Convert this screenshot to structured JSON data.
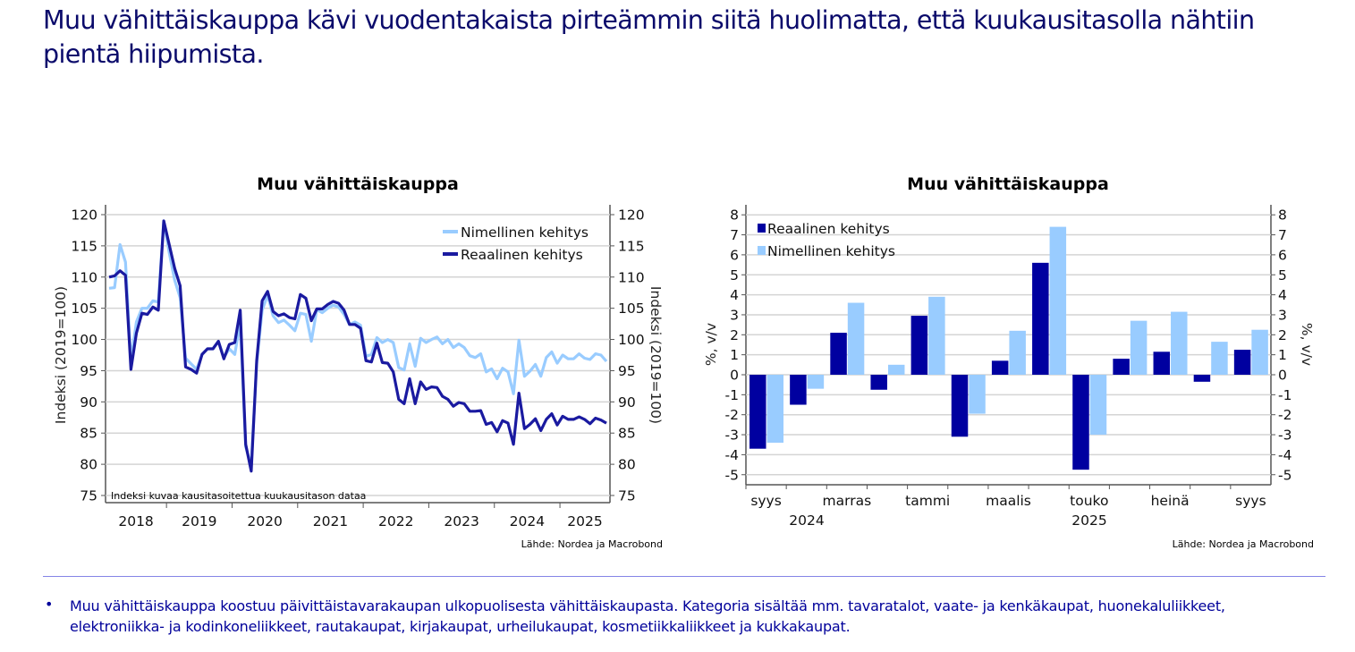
{
  "title": "Muu vähittäiskauppa kävi vuodentakaista pirteämmin siitä huolimatta, että kuukausitasolla nähtiin pientä hiipumista.",
  "chart_data": [
    {
      "type": "line",
      "title": "Muu vähittäiskauppa",
      "ylabel_left": "Indeksi (2019=100)",
      "ylabel_right": "Indeksi (2019=100)",
      "ylim": [
        75,
        120
      ],
      "yticks": [
        "75",
        "80",
        "85",
        "90",
        "95",
        "100",
        "105",
        "110",
        "115",
        "120"
      ],
      "xtick_labels": [
        "2018",
        "2019",
        "2020",
        "2021",
        "2022",
        "2023",
        "2024",
        "2025"
      ],
      "grid": true,
      "legend_placement": "top-right",
      "note": "Indeksi kuvaa kausitasoitettua kuukausitason dataa",
      "source": "Lähde: Nordea ja Macrobond",
      "x": [
        "2018-02",
        "2018-03",
        "2018-04",
        "2018-05",
        "2018-06",
        "2018-07",
        "2018-08",
        "2018-09",
        "2018-10",
        "2018-11",
        "2018-12",
        "2019-01",
        "2019-02",
        "2019-03",
        "2019-04",
        "2019-05",
        "2019-06",
        "2019-07",
        "2019-08",
        "2019-09",
        "2019-10",
        "2019-11",
        "2019-12",
        "2020-01",
        "2020-02",
        "2020-03",
        "2020-04",
        "2020-05",
        "2020-06",
        "2020-07",
        "2020-08",
        "2020-09",
        "2020-10",
        "2020-11",
        "2020-12",
        "2021-01",
        "2021-02",
        "2021-03",
        "2021-04",
        "2021-05",
        "2021-06",
        "2021-07",
        "2021-08",
        "2021-09",
        "2021-10",
        "2021-11",
        "2021-12",
        "2022-01",
        "2022-02",
        "2022-03",
        "2022-04",
        "2022-05",
        "2022-06",
        "2022-07",
        "2022-08",
        "2022-09",
        "2022-10",
        "2022-11",
        "2022-12",
        "2023-01",
        "2023-02",
        "2023-03",
        "2023-04",
        "2023-05",
        "2023-06",
        "2023-07",
        "2023-08",
        "2023-09",
        "2023-10",
        "2023-11",
        "2023-12",
        "2024-01",
        "2024-02",
        "2024-03",
        "2024-04",
        "2024-05",
        "2024-06",
        "2024-07",
        "2024-08",
        "2024-09",
        "2024-10",
        "2024-11",
        "2024-12",
        "2025-01",
        "2025-02",
        "2025-03",
        "2025-04",
        "2025-05",
        "2025-06",
        "2025-07",
        "2025-08",
        "2025-09"
      ],
      "series": [
        {
          "name": "Nimellinen kehitys",
          "color": "#99ccff",
          "values": [
            108.2,
            108.3,
            115.2,
            112.4,
            96.6,
            102.8,
            105.0,
            105.0,
            106.2,
            106.0,
            119.0,
            113.9,
            109.5,
            106.7,
            97.0,
            96.1,
            95.2,
            97.6,
            98.5,
            98.5,
            99.7,
            97.1,
            98.5,
            97.6,
            102.8,
            82.8,
            79.8,
            96.1,
            104.7,
            107.1,
            103.8,
            102.7,
            103.1,
            102.3,
            101.4,
            104.2,
            104.0,
            99.7,
            104.8,
            104.3,
            105.0,
            105.5,
            105.2,
            104.0,
            102.4,
            102.8,
            102.3,
            97.3,
            97.6,
            100.3,
            99.5,
            100.0,
            99.5,
            95.5,
            95.1,
            99.3,
            95.7,
            100.2,
            99.5,
            100.0,
            100.4,
            99.3,
            100.0,
            98.7,
            99.3,
            98.7,
            97.4,
            97.1,
            97.7,
            94.8,
            95.3,
            93.7,
            95.4,
            94.8,
            91.3,
            99.9,
            94.1,
            94.9,
            96.0,
            94.1,
            97.1,
            98.0,
            96.2,
            97.5,
            96.9,
            96.9,
            97.7,
            97.0,
            96.8,
            97.7,
            97.5,
            96.5
          ]
        },
        {
          "name": "Reaalinen kehitys",
          "color": "#1a1aa0",
          "values": [
            110.0,
            110.2,
            111.0,
            110.3,
            95.2,
            101.0,
            104.2,
            104.0,
            105.2,
            104.7,
            119.0,
            115.2,
            111.4,
            108.6,
            95.6,
            95.2,
            94.6,
            97.6,
            98.5,
            98.5,
            99.7,
            96.9,
            99.2,
            99.5,
            104.7,
            83.2,
            78.9,
            96.6,
            106.2,
            107.7,
            104.5,
            103.8,
            104.1,
            103.5,
            103.3,
            107.2,
            106.6,
            103.0,
            104.9,
            104.9,
            105.6,
            106.1,
            105.8,
            104.7,
            102.4,
            102.4,
            101.8,
            96.6,
            96.4,
            99.4,
            96.3,
            96.2,
            94.8,
            90.4,
            89.7,
            93.7,
            89.7,
            93.2,
            92.0,
            92.4,
            92.3,
            90.9,
            90.4,
            89.3,
            89.9,
            89.7,
            88.5,
            88.5,
            88.6,
            86.4,
            86.7,
            85.2,
            87.0,
            86.6,
            83.2,
            91.4,
            85.7,
            86.4,
            87.3,
            85.4,
            87.2,
            88.1,
            86.3,
            87.7,
            87.2,
            87.2,
            87.6,
            87.2,
            86.5,
            87.4,
            87.1,
            86.6
          ]
        }
      ]
    },
    {
      "type": "bar",
      "title": "Muu vähittäiskauppa",
      "ylabel_left": "%, v/v",
      "ylabel_right": "%, v/v",
      "ylim": [
        -5,
        8
      ],
      "yticks": [
        "-5",
        "-4",
        "-3",
        "-2",
        "-1",
        "0",
        "1",
        "2",
        "3",
        "4",
        "5",
        "6",
        "7",
        "8"
      ],
      "categories": [
        "syys",
        "",
        "marras",
        "",
        "tammi",
        "",
        "maalis",
        "",
        "touko",
        "",
        "heinä",
        "",
        "syys"
      ],
      "year_labels": [
        "2024",
        "2025"
      ],
      "grid": true,
      "legend_placement": "top-left",
      "source": "Lähde: Nordea ja Macrobond",
      "series": [
        {
          "name": "Reaalinen kehitys",
          "color": "#0000a0",
          "values": [
            -3.7,
            -1.5,
            2.1,
            -0.75,
            2.95,
            -3.1,
            0.7,
            5.6,
            -4.75,
            0.8,
            1.15,
            -0.35,
            1.25
          ]
        },
        {
          "name": "Nimellinen kehitys",
          "color": "#99ccff",
          "values": [
            -3.4,
            -0.7,
            3.6,
            0.5,
            3.9,
            -1.95,
            2.2,
            7.4,
            -3.0,
            2.7,
            3.15,
            1.65,
            2.25
          ]
        }
      ]
    }
  ],
  "footnote": {
    "bullet": "•",
    "text": "Muu vähittäiskauppa koostuu päivittäistavarakaupan ulkopuolisesta vähittäiskaupasta. Kategoria sisältää mm. tavaratalot, vaate- ja kenkäkaupat, huonekaluliikkeet, elektroniikka- ja kodinkoneliikkeet, rautakaupat, kirjakaupat, urheilukaupat, kosmetiikkaliikkeet ja kukkakaupat."
  }
}
